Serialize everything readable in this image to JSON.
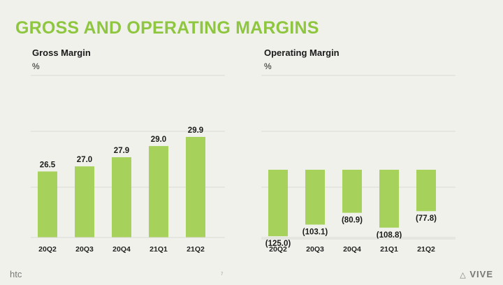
{
  "slide": {
    "title": "GROSS AND OPERATING MARGINS",
    "page_number": "7",
    "logo_left": "htc",
    "logo_right": "VIVE"
  },
  "colors": {
    "accent": "#8ec63f",
    "bar": "#a6d15a",
    "grid": "#dcdcd6",
    "axis": "#555555"
  },
  "chart_data": [
    {
      "type": "bar",
      "title": "Gross Margin",
      "unit": "%",
      "categories": [
        "20Q2",
        "20Q3",
        "20Q4",
        "21Q1",
        "21Q2"
      ],
      "values": [
        26.5,
        27.0,
        27.9,
        29.0,
        29.9
      ],
      "labels": [
        "26.5",
        "27.0",
        "27.9",
        "29.0",
        "29.9"
      ],
      "xlabel": "",
      "ylabel": "%",
      "ylim": [
        20,
        31
      ],
      "grid": true
    },
    {
      "type": "bar",
      "title": "Operating Margin",
      "unit": "%",
      "categories": [
        "20Q2",
        "20Q3",
        "20Q4",
        "21Q1",
        "21Q2"
      ],
      "values": [
        -125.0,
        -103.1,
        -80.9,
        -108.8,
        -77.8
      ],
      "labels": [
        "(125.0)",
        "(103.1)",
        "(80.9)",
        "(108.8)",
        "(77.8)"
      ],
      "xlabel": "",
      "ylabel": "%",
      "ylim": [
        -130,
        0
      ],
      "grid": true
    }
  ]
}
